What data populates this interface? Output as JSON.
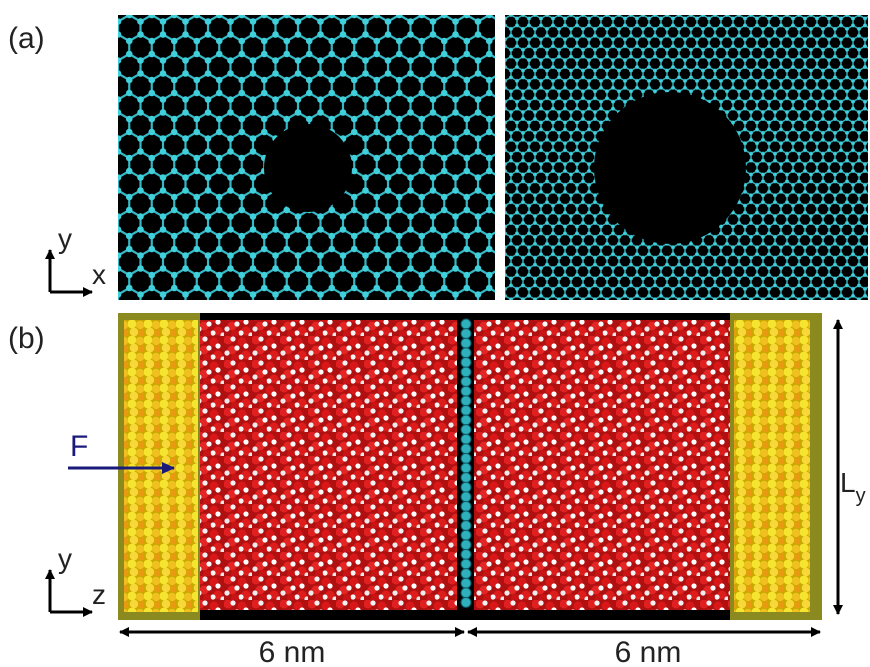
{
  "panel_a": {
    "label": "(a)",
    "axis_vertical": "y",
    "axis_horizontal": "x"
  },
  "panel_b": {
    "label": "(b)",
    "axis_vertical": "y",
    "axis_horizontal": "z",
    "force": "F",
    "height_label": "L",
    "height_subscript": "y",
    "left_length": "6 nm",
    "right_length": "6 nm"
  }
}
